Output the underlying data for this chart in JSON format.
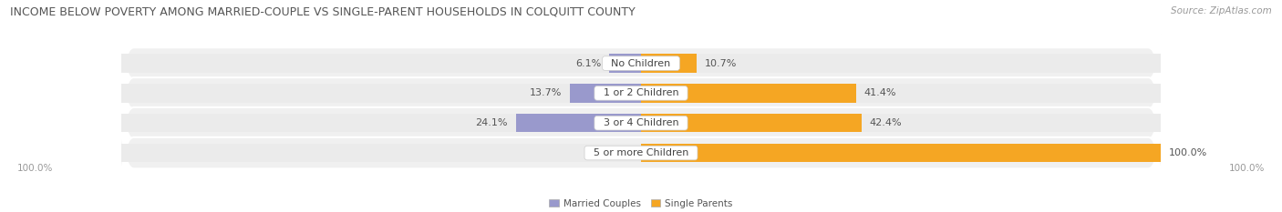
{
  "title": "INCOME BELOW POVERTY AMONG MARRIED-COUPLE VS SINGLE-PARENT HOUSEHOLDS IN COLQUITT COUNTY",
  "source": "Source: ZipAtlas.com",
  "categories": [
    "No Children",
    "1 or 2 Children",
    "3 or 4 Children",
    "5 or more Children"
  ],
  "married_values": [
    6.1,
    13.7,
    24.1,
    0.0
  ],
  "single_values": [
    10.7,
    41.4,
    42.4,
    100.0
  ],
  "married_color": "#9999cc",
  "single_color": "#f5a623",
  "bar_bg_color": "#ebebeb",
  "row_bg_color": "#f0f0f0",
  "title_color": "#555555",
  "axis_label_color": "#999999",
  "label_color": "#555555",
  "category_label_color": "#444444",
  "background_color": "#ffffff",
  "title_fontsize": 9.0,
  "source_fontsize": 7.5,
  "bar_height": 0.62,
  "max_value": 100.0,
  "left_axis_label": "100.0%",
  "right_axis_label": "100.0%",
  "legend_labels": [
    "Married Couples",
    "Single Parents"
  ],
  "value_fontsize": 8.0,
  "category_fontsize": 8.0
}
